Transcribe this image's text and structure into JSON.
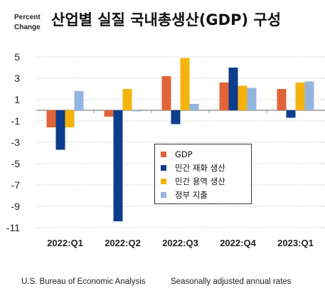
{
  "header": {
    "ylabel_line1": "Percent",
    "ylabel_line2": "Change",
    "title": "산업별 실질 국내총생산(GDP) 구성"
  },
  "footer": {
    "source": "U.S. Bureau of Economic Analysis",
    "note": "Seasonally adjusted annual rates"
  },
  "chart_data": {
    "type": "bar",
    "title": "산업별 실질 국내총생산(GDP) 구성",
    "ylabel": "Percent Change",
    "xlabel": "",
    "categories": [
      "2022:Q1",
      "2022:Q2",
      "2022:Q3",
      "2022:Q4",
      "2023:Q1"
    ],
    "yticks": [
      5,
      3,
      1,
      -1,
      -3,
      -5,
      -7,
      -9,
      -11
    ],
    "ytick_labels": [
      "5",
      "3",
      "1",
      "-1",
      "-3",
      "-5",
      "-7",
      "-9",
      "-11"
    ],
    "ylim": [
      -11.5,
      6.2
    ],
    "grid": "horizontal dotted",
    "legend_position": "lower-right",
    "series": [
      {
        "name": "GDP",
        "color": "#e06437",
        "values": [
          -1.6,
          -0.6,
          3.2,
          2.6,
          2.0
        ]
      },
      {
        "name": "민간 재화 생산",
        "color": "#0d3d8c",
        "values": [
          -3.7,
          -10.4,
          -1.3,
          4.0,
          -0.7
        ]
      },
      {
        "name": "민간 용역 생산",
        "color": "#f5b30e",
        "values": [
          -1.6,
          2.0,
          4.9,
          2.3,
          2.6
        ]
      },
      {
        "name": "정부 지출",
        "color": "#93b6e0",
        "values": [
          1.8,
          -0.1,
          0.6,
          2.1,
          2.7
        ]
      }
    ]
  }
}
